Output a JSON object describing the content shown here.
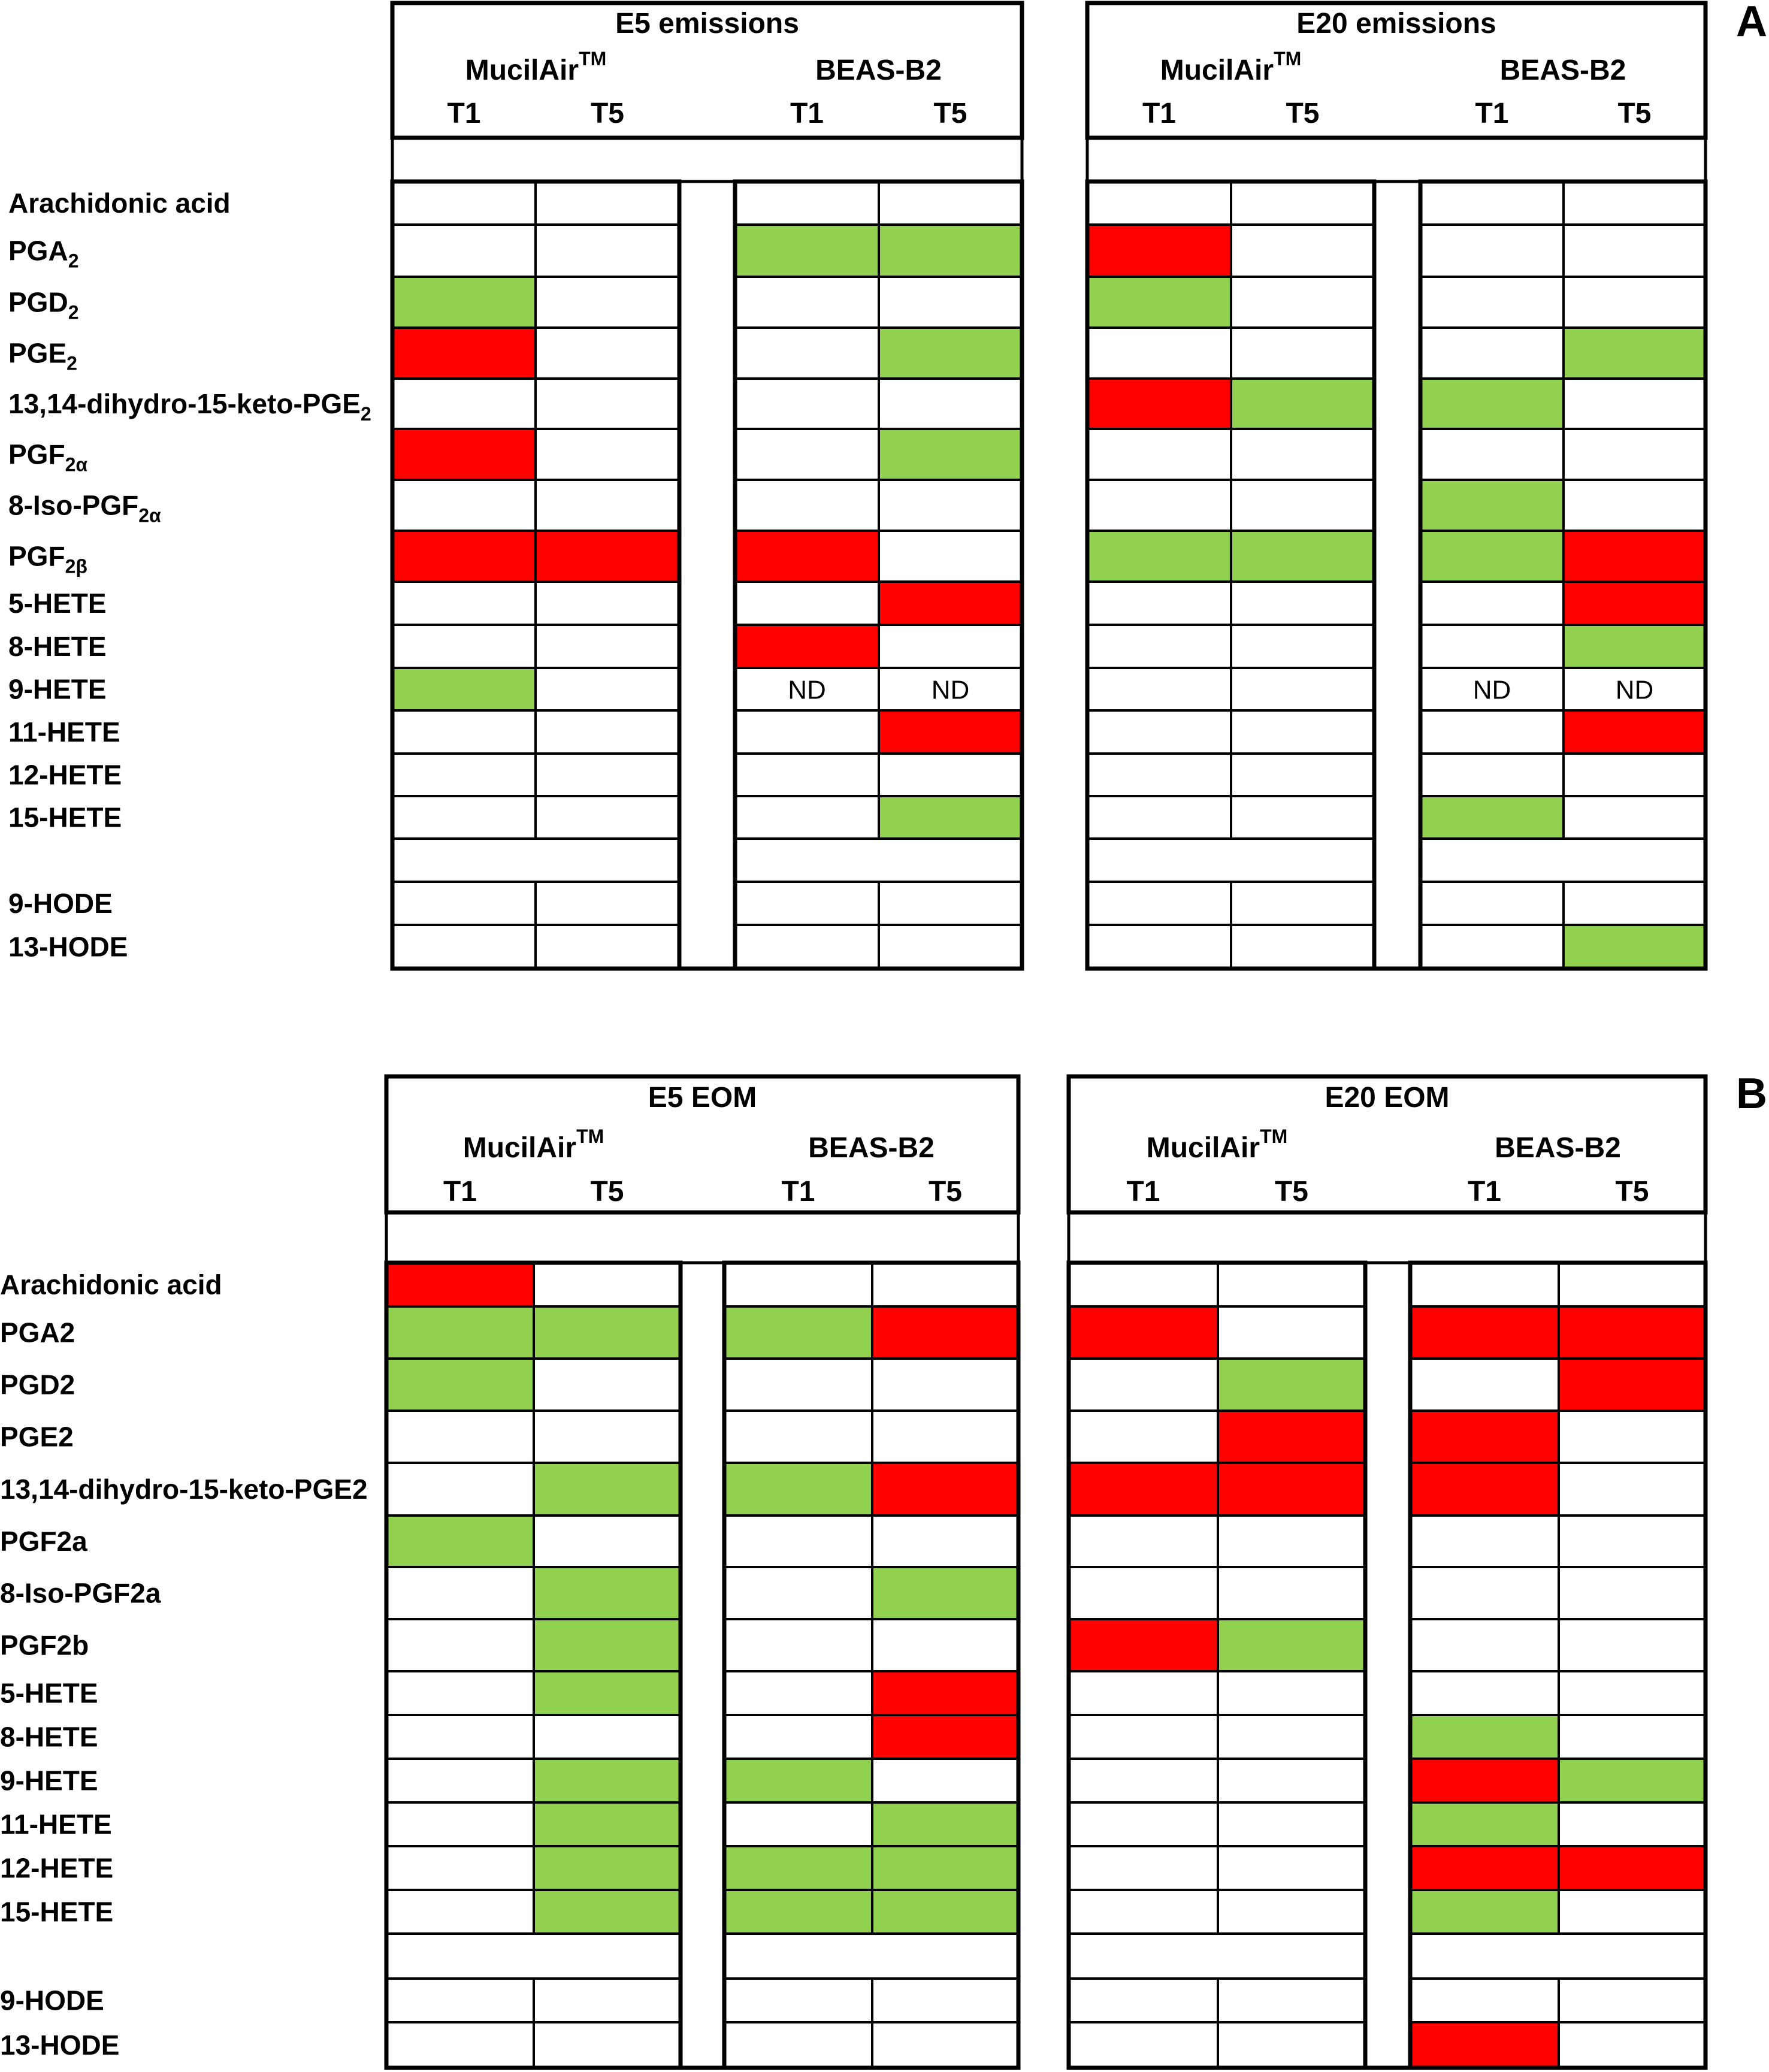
{
  "colors": {
    "increase": "#ff0000",
    "decrease": "#92d050",
    "none": "#ffffff",
    "line": "#000000"
  },
  "chart_data": [
    {
      "type": "heatmap",
      "panel": "A",
      "groups": [
        {
          "title": "E5 emissions",
          "subgroups": [
            {
              "name": "MucilAir",
              "sup": "TM",
              "times": [
                "T1",
                "T5"
              ]
            },
            {
              "name": "BEAS-B2",
              "sup": "",
              "times": [
                "T1",
                "T5"
              ]
            }
          ]
        },
        {
          "title": "E20 emissions",
          "subgroups": [
            {
              "name": "MucilAir",
              "sup": "TM",
              "times": [
                "T1",
                "T5"
              ]
            },
            {
              "name": "BEAS-B2",
              "sup": "",
              "times": [
                "T1",
                "T5"
              ]
            }
          ]
        }
      ],
      "rows": [
        {
          "label": "Arachidonic acid",
          "sub": "",
          "cells": [
            "",
            "",
            "",
            "",
            "",
            "",
            "",
            ""
          ]
        },
        {
          "label": "PGA",
          "sub": "2",
          "cells": [
            "",
            "",
            "G",
            "G",
            "R",
            "",
            "",
            ""
          ]
        },
        {
          "label": "PGD",
          "sub": "2",
          "cells": [
            "G",
            "",
            "",
            "",
            "G",
            "",
            "",
            ""
          ]
        },
        {
          "label": "PGE",
          "sub": "2",
          "cells": [
            "R",
            "",
            "",
            "G",
            "",
            "",
            "",
            "G"
          ]
        },
        {
          "label": "13,14-dihydro-15-keto-PGE",
          "sub": "2",
          "cells": [
            "",
            "",
            "",
            "",
            "R",
            "G",
            "G",
            ""
          ]
        },
        {
          "label": "PGF",
          "sub": "2α",
          "cells": [
            "R",
            "",
            "",
            "G",
            "",
            "",
            "",
            ""
          ]
        },
        {
          "label": "8-Iso-PGF",
          "sub": "2α",
          "cells": [
            "",
            "",
            "",
            "",
            "",
            "",
            "G",
            ""
          ]
        },
        {
          "label": "PGF",
          "sub": "2β",
          "cells": [
            "R",
            "R",
            "R",
            "",
            "G",
            "G",
            "G",
            "R"
          ]
        },
        {
          "label": "5-HETE",
          "sub": "",
          "cells": [
            "",
            "",
            "",
            "R",
            "",
            "",
            "",
            "R"
          ]
        },
        {
          "label": "8-HETE",
          "sub": "",
          "cells": [
            "",
            "",
            "R",
            "",
            "",
            "",
            "",
            "G"
          ]
        },
        {
          "label": "9-HETE",
          "sub": "",
          "cells": [
            "G",
            "",
            "ND",
            "ND",
            "",
            "",
            "ND",
            "ND"
          ]
        },
        {
          "label": "11-HETE",
          "sub": "",
          "cells": [
            "",
            "",
            "",
            "R",
            "",
            "",
            "",
            "R"
          ]
        },
        {
          "label": "12-HETE",
          "sub": "",
          "cells": [
            "",
            "",
            "",
            "",
            "",
            "",
            "",
            ""
          ]
        },
        {
          "label": "15-HETE",
          "sub": "",
          "cells": [
            "",
            "",
            "",
            "G",
            "",
            "",
            "G",
            ""
          ]
        },
        {
          "label": "9-HODE",
          "sub": "",
          "cells": [
            "",
            "",
            "",
            "",
            "",
            "",
            "",
            ""
          ]
        },
        {
          "label": "13-HODE",
          "sub": "",
          "cells": [
            "",
            "",
            "",
            "",
            "",
            "",
            "",
            "G"
          ]
        }
      ]
    },
    {
      "type": "heatmap",
      "panel": "B",
      "groups": [
        {
          "title": "E5 EOM",
          "subgroups": [
            {
              "name": "MucilAir",
              "sup": "TM",
              "times": [
                "T1",
                "T5"
              ]
            },
            {
              "name": "BEAS-B2",
              "sup": "",
              "times": [
                "T1",
                "T5"
              ]
            }
          ]
        },
        {
          "title": "E20 EOM",
          "subgroups": [
            {
              "name": "MucilAir",
              "sup": "TM",
              "times": [
                "T1",
                "T5"
              ]
            },
            {
              "name": "BEAS-B2",
              "sup": "",
              "times": [
                "T1",
                "T5"
              ]
            }
          ]
        }
      ],
      "rows": [
        {
          "label": "Arachidonic acid",
          "sub": "",
          "cells": [
            "R",
            "",
            "",
            "",
            "",
            "",
            "",
            ""
          ]
        },
        {
          "label": "PGA2",
          "sub": "",
          "cells": [
            "G",
            "G",
            "G",
            "R",
            "R",
            "",
            "R",
            "R"
          ]
        },
        {
          "label": "PGD2",
          "sub": "",
          "cells": [
            "G",
            "",
            "",
            "",
            "",
            "G",
            "",
            "R"
          ]
        },
        {
          "label": "PGE2",
          "sub": "",
          "cells": [
            "",
            "",
            "",
            "",
            "",
            "R",
            "R",
            ""
          ]
        },
        {
          "label": "13,14-dihydro-15-keto-PGE2",
          "sub": "",
          "cells": [
            "",
            "G",
            "G",
            "R",
            "R",
            "R",
            "R",
            ""
          ]
        },
        {
          "label": "PGF2a",
          "sub": "",
          "cells": [
            "G",
            "",
            "",
            "",
            "",
            "",
            "",
            ""
          ]
        },
        {
          "label": "8-Iso-PGF2a",
          "sub": "",
          "cells": [
            "",
            "G",
            "",
            "G",
            "",
            "",
            "",
            ""
          ]
        },
        {
          "label": "PGF2b",
          "sub": "",
          "cells": [
            "",
            "G",
            "",
            "",
            "R",
            "G",
            "",
            ""
          ]
        },
        {
          "label": "5-HETE",
          "sub": "",
          "cells": [
            "",
            "G",
            "",
            "R",
            "",
            "",
            "",
            ""
          ]
        },
        {
          "label": "8-HETE",
          "sub": "",
          "cells": [
            "",
            "",
            "",
            "R",
            "",
            "",
            "G",
            ""
          ]
        },
        {
          "label": "9-HETE",
          "sub": "",
          "cells": [
            "",
            "G",
            "G",
            "",
            "",
            "",
            "R",
            "G"
          ]
        },
        {
          "label": "11-HETE",
          "sub": "",
          "cells": [
            "",
            "G",
            "",
            "G",
            "",
            "",
            "G",
            ""
          ]
        },
        {
          "label": "12-HETE",
          "sub": "",
          "cells": [
            "",
            "G",
            "G",
            "G",
            "",
            "",
            "R",
            "R"
          ]
        },
        {
          "label": "15-HETE",
          "sub": "",
          "cells": [
            "",
            "G",
            "G",
            "G",
            "",
            "",
            "G",
            ""
          ]
        },
        {
          "label": "9-HODE",
          "sub": "",
          "cells": [
            "",
            "",
            "",
            "",
            "",
            "",
            "",
            ""
          ]
        },
        {
          "label": "13-HODE",
          "sub": "",
          "cells": [
            "",
            "",
            "",
            "",
            "",
            "",
            "R",
            ""
          ]
        }
      ]
    }
  ]
}
